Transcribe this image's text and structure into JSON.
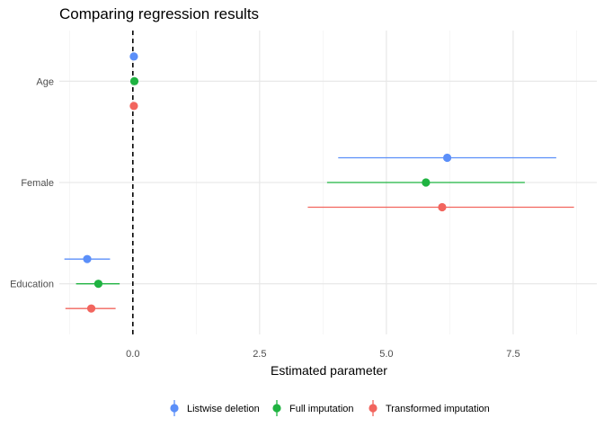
{
  "chart_data": {
    "type": "scatter",
    "title": "Comparing regression results",
    "xlabel": "Estimated parameter",
    "ylabel": "",
    "categories": [
      "Age",
      "Female",
      "Education"
    ],
    "xlim": [
      -1.45,
      9.15
    ],
    "x_ticks": [
      0,
      2.5,
      5,
      7.5
    ],
    "x_tick_labels": [
      "0.0",
      "2.5",
      "5.0",
      "7.5"
    ],
    "x_minor_ticks": [
      -1.25,
      1.25,
      3.75,
      6.25,
      8.75
    ],
    "reference_line": {
      "x": 0,
      "style": "dashed"
    },
    "grid": true,
    "legend_position": "bottom",
    "series": [
      {
        "name": "Listwise deletion",
        "color": "#5b8ff9",
        "estimates": [
          0.02,
          6.2,
          -0.9
        ],
        "lower": [
          0.02,
          4.05,
          -1.35
        ],
        "upper": [
          0.02,
          8.35,
          -0.45
        ]
      },
      {
        "name": "Full imputation",
        "color": "#1fb341",
        "estimates": [
          0.03,
          5.78,
          -0.68
        ],
        "lower": [
          0.03,
          3.83,
          -1.12
        ],
        "upper": [
          0.03,
          7.73,
          -0.26
        ]
      },
      {
        "name": "Transformed imputation",
        "color": "#f2655e",
        "estimates": [
          0.02,
          6.1,
          -0.82
        ],
        "lower": [
          0.02,
          3.45,
          -1.33
        ],
        "upper": [
          0.02,
          8.7,
          -0.34
        ]
      }
    ]
  }
}
